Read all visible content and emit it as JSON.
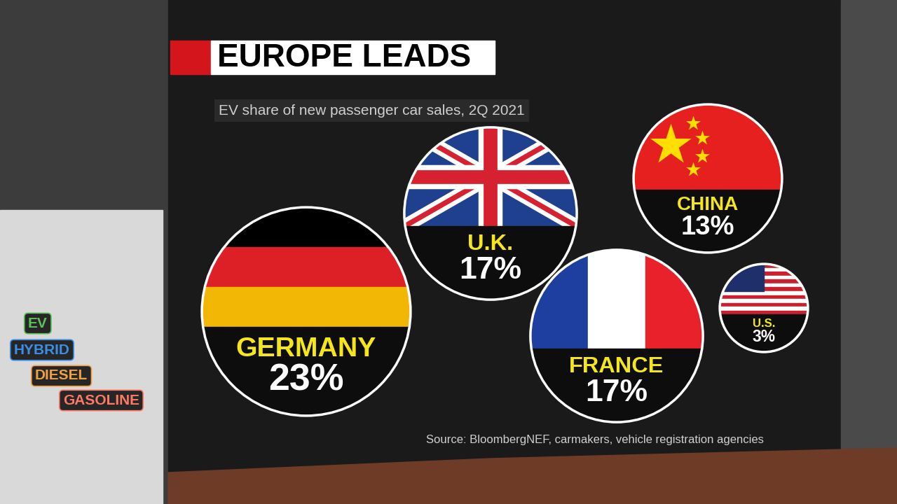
{
  "chart_data": {
    "type": "bubble",
    "title": "EUROPE LEADS",
    "subtitle": "EV share of new passenger car sales, 2Q 2021",
    "categories": [
      "GERMANY",
      "U.K.",
      "FRANCE",
      "CHINA",
      "U.S."
    ],
    "values": [
      23,
      17,
      17,
      13,
      3
    ],
    "value_labels": [
      "23%",
      "17%",
      "17%",
      "13%",
      "3%"
    ],
    "data_labels": true,
    "tick_labels": false,
    "source": "Source: BloombergNEF, carmakers, vehicle registration agencies",
    "annotations": [
      "EV",
      "HYBRID",
      "DIESEL",
      "GASOLINE"
    ]
  }
}
